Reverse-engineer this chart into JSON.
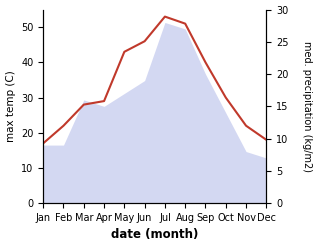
{
  "months": [
    "Jan",
    "Feb",
    "Mar",
    "Apr",
    "May",
    "Jun",
    "Jul",
    "Aug",
    "Sep",
    "Oct",
    "Nov",
    "Dec"
  ],
  "temperature": [
    17,
    22,
    28,
    29,
    43,
    46,
    53,
    51,
    40,
    30,
    22,
    18
  ],
  "precipitation": [
    9,
    9,
    16,
    15,
    17,
    19,
    28,
    27,
    20,
    14,
    8,
    7
  ],
  "temp_color": "#c0392b",
  "precip_color": "#b0b8e8",
  "xlabel": "date (month)",
  "ylabel_left": "max temp (C)",
  "ylabel_right": "med. precipitation (kg/m2)",
  "ylim_left": [
    0,
    55
  ],
  "ylim_right": [
    0,
    30
  ],
  "temp_yticks": [
    0,
    10,
    20,
    30,
    40,
    50
  ],
  "precip_yticks": [
    0,
    5,
    10,
    15,
    20,
    25,
    30
  ],
  "background_color": "#ffffff"
}
